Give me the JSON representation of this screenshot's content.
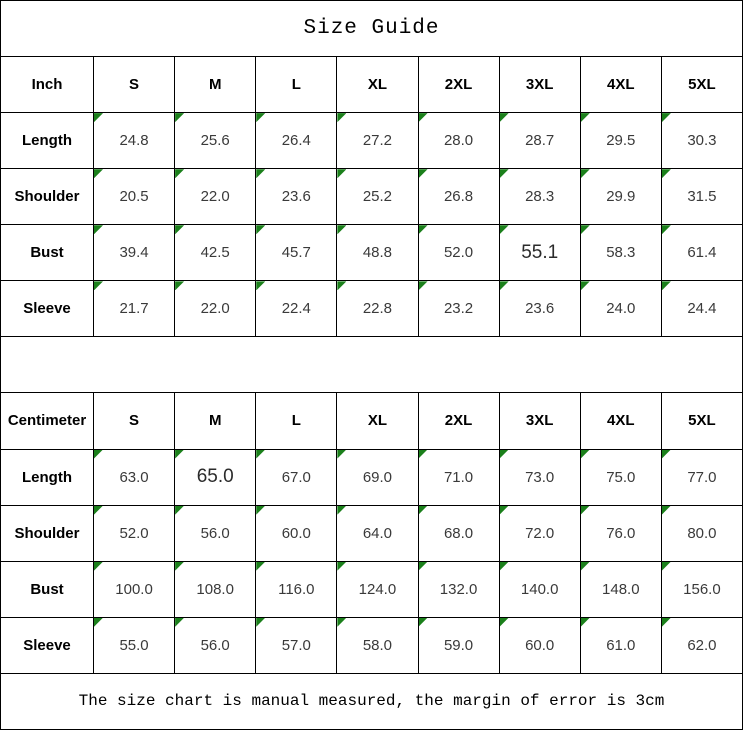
{
  "title": "Size Guide",
  "footer_note": "The size chart is manual measured, the margin of error is 3cm",
  "colors": {
    "indicator_green": "#1b801b",
    "border_black": "#000000",
    "background": "#ffffff"
  },
  "tables": [
    {
      "unit_label": "Inch",
      "sizes": [
        "S",
        "M",
        "L",
        "XL",
        "2XL",
        "3XL",
        "4XL",
        "5XL"
      ],
      "rows": [
        {
          "label": "Length",
          "values": [
            "24.8",
            "25.6",
            "26.4",
            "27.2",
            "28.0",
            "28.7",
            "29.5",
            "30.3"
          ]
        },
        {
          "label": "Shoulder",
          "values": [
            "20.5",
            "22.0",
            "23.6",
            "25.2",
            "26.8",
            "28.3",
            "29.9",
            "31.5"
          ]
        },
        {
          "label": "Bust",
          "values": [
            "39.4",
            "42.5",
            "45.7",
            "48.8",
            "52.0",
            "55.1",
            "58.3",
            "61.4"
          ]
        },
        {
          "label": "Sleeve",
          "values": [
            "21.7",
            "22.0",
            "22.4",
            "22.8",
            "23.2",
            "23.6",
            "24.0",
            "24.4"
          ]
        }
      ]
    },
    {
      "unit_label": "Centimeter",
      "sizes": [
        "S",
        "M",
        "L",
        "XL",
        "2XL",
        "3XL",
        "4XL",
        "5XL"
      ],
      "rows": [
        {
          "label": "Length",
          "values": [
            "63.0",
            "65.0",
            "67.0",
            "69.0",
            "71.0",
            "73.0",
            "75.0",
            "77.0"
          ]
        },
        {
          "label": "Shoulder",
          "values": [
            "52.0",
            "56.0",
            "60.0",
            "64.0",
            "68.0",
            "72.0",
            "76.0",
            "80.0"
          ]
        },
        {
          "label": "Bust",
          "values": [
            "100.0",
            "108.0",
            "116.0",
            "124.0",
            "132.0",
            "140.0",
            "148.0",
            "156.0"
          ]
        },
        {
          "label": "Sleeve",
          "values": [
            "55.0",
            "56.0",
            "57.0",
            "58.0",
            "59.0",
            "60.0",
            "61.0",
            "62.0"
          ]
        }
      ]
    }
  ]
}
